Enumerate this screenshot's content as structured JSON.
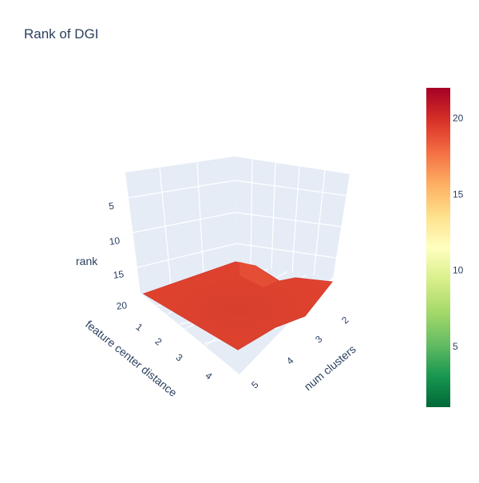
{
  "chart_data": {
    "type": "surface",
    "title": "Rank of DGI",
    "x_axis": {
      "title": "num clusters",
      "ticks": [
        "2",
        "3",
        "4",
        "5"
      ]
    },
    "y_axis": {
      "title": "feature center distance",
      "ticks": [
        "1",
        "2",
        "3",
        "4"
      ]
    },
    "z_axis": {
      "title": "rank",
      "ticks": [
        "5",
        "10",
        "15",
        "20"
      ],
      "reversed": true,
      "range": [
        1,
        22
      ]
    },
    "colorscale": "RdYlGn reversed",
    "colorbar": {
      "ticks": [
        "5",
        "10",
        "15",
        "20"
      ],
      "range": [
        1,
        22
      ]
    },
    "x": [
      2,
      3,
      4,
      5
    ],
    "y": [
      1,
      2,
      3,
      4
    ],
    "z": [
      [
        19,
        20,
        19,
        19
      ],
      [
        19,
        18,
        19,
        19
      ],
      [
        19,
        19,
        19,
        19
      ],
      [
        19,
        19,
        19,
        19
      ]
    ]
  }
}
